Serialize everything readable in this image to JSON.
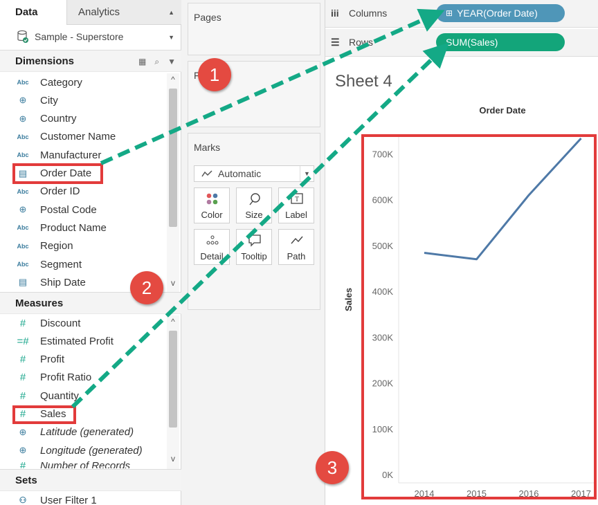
{
  "left_pane": {
    "tabs": {
      "data": "Data",
      "analytics": "Analytics"
    },
    "datasource": "Sample - Superstore",
    "dimensions_title": "Dimensions",
    "dimensions": [
      {
        "label": "Category",
        "type": "Abc"
      },
      {
        "label": "City",
        "type": "globe"
      },
      {
        "label": "Country",
        "type": "globe"
      },
      {
        "label": "Customer Name",
        "type": "Abc"
      },
      {
        "label": "Manufacturer",
        "type": "Abc"
      },
      {
        "label": "Order Date",
        "type": "date"
      },
      {
        "label": "Order ID",
        "type": "Abc"
      },
      {
        "label": "Postal Code",
        "type": "globe"
      },
      {
        "label": "Product Name",
        "type": "Abc"
      },
      {
        "label": "Region",
        "type": "Abc"
      },
      {
        "label": "Segment",
        "type": "Abc"
      },
      {
        "label": "Ship Date",
        "type": "date"
      }
    ],
    "measures_title": "Measures",
    "measures": [
      {
        "label": "Discount",
        "type": "#"
      },
      {
        "label": "Estimated Profit",
        "type": "=#"
      },
      {
        "label": "Profit",
        "type": "#"
      },
      {
        "label": "Profit Ratio",
        "type": "#"
      },
      {
        "label": "Quantity",
        "type": "#"
      },
      {
        "label": "Sales",
        "type": "#"
      },
      {
        "label": "Latitude (generated)",
        "type": "globe"
      },
      {
        "label": "Longitude (generated)",
        "type": "globe"
      },
      {
        "label": "Number of Records",
        "type": "#"
      }
    ],
    "sets_title": "Sets",
    "sets": [
      {
        "label": "User Filter 1"
      }
    ]
  },
  "mid_pane": {
    "pages_title": "Pages",
    "filters_title": "Filters",
    "marks_title": "Marks",
    "marks_type": "Automatic",
    "mark_buttons": [
      {
        "label": "Color",
        "icon": "color-dots-icon"
      },
      {
        "label": "Size",
        "icon": "size-lasso-icon"
      },
      {
        "label": "Label",
        "icon": "label-box-icon"
      },
      {
        "label": "Detail",
        "icon": "detail-dots-icon"
      },
      {
        "label": "Tooltip",
        "icon": "tooltip-bubble-icon"
      },
      {
        "label": "Path",
        "icon": "path-line-icon"
      }
    ]
  },
  "right_pane": {
    "columns_label": "Columns",
    "rows_label": "Rows",
    "columns_pill": "YEAR(Order Date)",
    "rows_pill": "SUM(Sales)",
    "sheet_title": "Sheet 4"
  },
  "colors": {
    "dimension_pill": "#4f96b8",
    "measure_pill": "#13a57a",
    "line": "#4e79a7",
    "arrow": "#14a986",
    "highlight": "#e23b3b",
    "badge": "#e44a41"
  },
  "annotations": [
    "1",
    "2",
    "3"
  ],
  "chart_data": {
    "type": "line",
    "title": "Order Date",
    "xlabel": "Order Date",
    "ylabel": "Sales",
    "categories": [
      "2014",
      "2015",
      "2016",
      "2017"
    ],
    "series": [
      {
        "values": [
          484000,
          470000,
          610000,
          734000
        ]
      }
    ],
    "ylim": [
      0,
      740000
    ],
    "yticks": [
      0,
      100000,
      200000,
      300000,
      400000,
      500000,
      600000,
      700000
    ],
    "ytick_labels": [
      "0K",
      "100K",
      "200K",
      "300K",
      "400K",
      "500K",
      "600K",
      "700K"
    ],
    "grid": false
  }
}
